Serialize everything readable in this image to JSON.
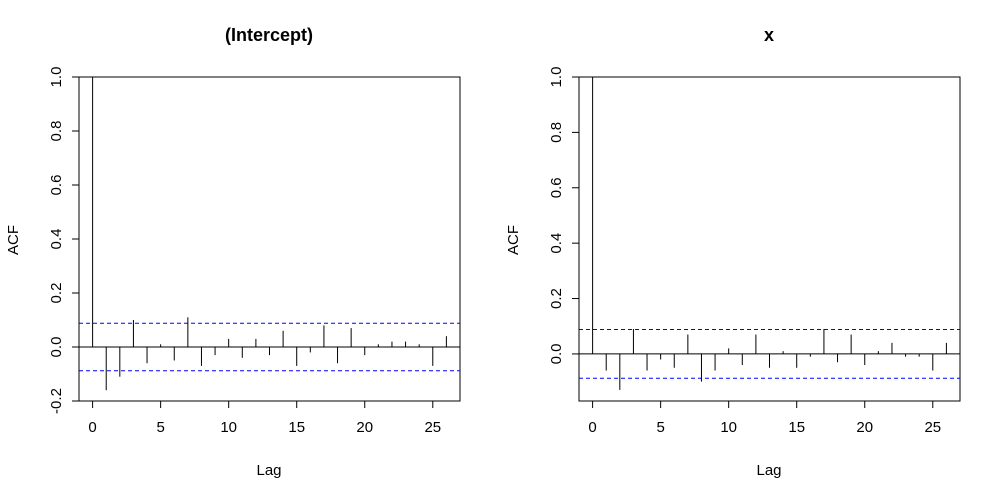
{
  "chart_data": [
    {
      "type": "bar",
      "title": "(Intercept)",
      "xlabel": "Lag",
      "ylabel": "ACF",
      "xlim": [
        -1,
        27
      ],
      "ylim": [
        -0.2,
        1.0
      ],
      "x_ticks": [
        0,
        5,
        10,
        15,
        20,
        25
      ],
      "y_ticks": [
        -0.2,
        0.0,
        0.2,
        0.4,
        0.6,
        0.8,
        1.0
      ],
      "y_tick_labels": [
        "-0.2",
        "0.0",
        "0.2",
        "0.4",
        "0.6",
        "0.8",
        "1.0"
      ],
      "confidence_limits": [
        0.088,
        -0.088
      ],
      "lags": [
        0,
        1,
        2,
        3,
        4,
        5,
        6,
        7,
        8,
        9,
        10,
        11,
        12,
        13,
        14,
        15,
        16,
        17,
        18,
        19,
        20,
        21,
        22,
        23,
        24,
        25,
        26
      ],
      "acf": [
        1.0,
        -0.16,
        -0.11,
        0.1,
        -0.06,
        0.01,
        -0.05,
        0.11,
        -0.07,
        -0.03,
        0.03,
        -0.04,
        0.03,
        -0.03,
        0.06,
        -0.07,
        -0.02,
        0.08,
        -0.06,
        0.07,
        -0.03,
        0.01,
        0.02,
        0.02,
        0.01,
        -0.07,
        0.04
      ],
      "confidence_line_color": "#0000ff",
      "bar_color": "#000000"
    },
    {
      "type": "bar",
      "title": "x",
      "xlabel": "Lag",
      "ylabel": "ACF",
      "xlim": [
        -1,
        27
      ],
      "ylim": [
        -0.17,
        1.0
      ],
      "x_ticks": [
        0,
        5,
        10,
        15,
        20,
        25
      ],
      "y_ticks": [
        0.0,
        0.2,
        0.4,
        0.6,
        0.8,
        1.0
      ],
      "y_tick_labels": [
        "0.0",
        "0.2",
        "0.4",
        "0.6",
        "0.8",
        "1.0"
      ],
      "confidence_limits": [
        0.088,
        -0.088
      ],
      "lags": [
        0,
        1,
        2,
        3,
        4,
        5,
        6,
        7,
        8,
        9,
        10,
        11,
        12,
        13,
        14,
        15,
        16,
        17,
        18,
        19,
        20,
        21,
        22,
        23,
        24,
        25,
        26
      ],
      "acf": [
        1.0,
        -0.06,
        -0.13,
        0.09,
        -0.06,
        -0.02,
        -0.05,
        0.07,
        -0.1,
        -0.06,
        0.02,
        -0.04,
        0.07,
        -0.05,
        0.01,
        -0.05,
        -0.01,
        0.09,
        -0.03,
        0.07,
        -0.04,
        0.01,
        0.04,
        -0.01,
        -0.01,
        -0.06,
        0.04
      ],
      "confidence_line_color": "#0000ff",
      "bar_color": "#000000"
    }
  ]
}
